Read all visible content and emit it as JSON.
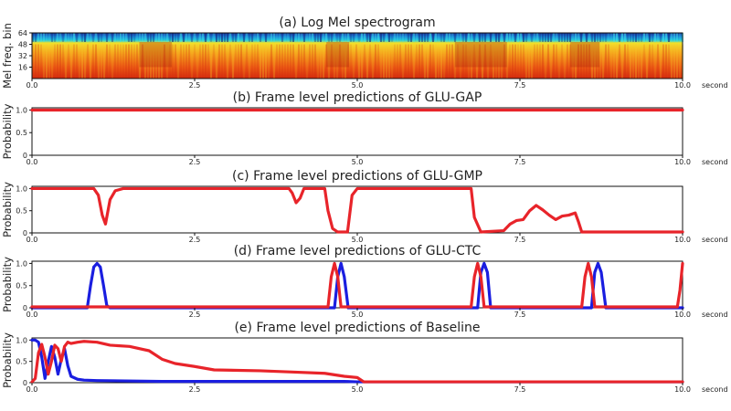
{
  "chart_data": [
    {
      "type": "heatmap",
      "title": "(a) Log Mel spectrogram",
      "xlabel": "second",
      "ylabel": "Mel freq. bin",
      "xlim": [
        0,
        10
      ],
      "ylim": [
        0,
        64
      ],
      "xticks": [
        "0.0",
        "2.5",
        "5.0",
        "7.5",
        "10.0"
      ],
      "yticks": [
        "64",
        "48",
        "32",
        "16"
      ],
      "colormap": [
        "#1d3a9c",
        "#1a85d8",
        "#23c8d8",
        "#f2e12b",
        "#f5a31c",
        "#ec5a14",
        "#d42a0e"
      ]
    },
    {
      "type": "line",
      "title": "(b) Frame level predictions of GLU-GAP",
      "xlabel": "second",
      "ylabel": "Probability",
      "xlim": [
        0,
        10
      ],
      "ylim": [
        0,
        1.05
      ],
      "xticks": [
        "0.0",
        "2.5",
        "5.0",
        "7.5",
        "10.0"
      ],
      "yticks": [
        "1.0",
        "0.5",
        "0"
      ],
      "series": [
        {
          "color": "#e8242a",
          "x": [
            0,
            10
          ],
          "y": [
            1.0,
            1.0
          ]
        }
      ]
    },
    {
      "type": "line",
      "title": "(c) Frame level predictions of GLU-GMP",
      "xlabel": "second",
      "ylabel": "Probability",
      "xlim": [
        0,
        10
      ],
      "ylim": [
        0,
        1.05
      ],
      "xticks": [
        "0.0",
        "2.5",
        "5.0",
        "7.5",
        "10.0"
      ],
      "yticks": [
        "1.0",
        "0.5",
        "0"
      ],
      "series": [
        {
          "color": "#e8242a",
          "x": [
            0,
            0.95,
            1.02,
            1.08,
            1.13,
            1.2,
            1.28,
            1.4,
            3.95,
            4.0,
            4.06,
            4.12,
            4.18,
            4.5,
            4.55,
            4.62,
            4.7,
            4.85,
            4.92,
            5.0,
            5.1,
            6.75,
            6.8,
            6.9,
            7.25,
            7.35,
            7.45,
            7.55,
            7.65,
            7.75,
            7.85,
            7.95,
            8.05,
            8.15,
            8.25,
            8.35,
            8.4,
            8.45,
            10.0
          ],
          "y": [
            1.0,
            1.0,
            0.85,
            0.4,
            0.2,
            0.75,
            0.95,
            1.0,
            1.0,
            0.9,
            0.68,
            0.78,
            1.0,
            1.0,
            0.5,
            0.1,
            0.02,
            0.02,
            0.85,
            1.0,
            1.0,
            1.0,
            0.35,
            0.02,
            0.05,
            0.2,
            0.28,
            0.3,
            0.5,
            0.62,
            0.52,
            0.4,
            0.3,
            0.38,
            0.4,
            0.45,
            0.25,
            0.02,
            0.02
          ]
        }
      ]
    },
    {
      "type": "line",
      "title": "(d) Frame level predictions of GLU-CTC",
      "xlabel": "second",
      "ylabel": "Probability",
      "xlim": [
        0,
        10
      ],
      "ylim": [
        0,
        1.05
      ],
      "xticks": [
        "0.0",
        "2.5",
        "5.0",
        "7.5",
        "10.0"
      ],
      "yticks": [
        "1.0",
        "0.5",
        "0"
      ],
      "series": [
        {
          "color": "#1a1ee0",
          "x": [
            0,
            0.85,
            0.9,
            0.95,
            1.0,
            1.05,
            1.1,
            1.15,
            1.2,
            4.65,
            4.7,
            4.75,
            4.8,
            4.86,
            6.85,
            6.9,
            6.95,
            7.0,
            7.05,
            8.6,
            8.65,
            8.7,
            8.75,
            8.82,
            10.0
          ],
          "y": [
            0.0,
            0.0,
            0.5,
            0.92,
            1.0,
            0.92,
            0.5,
            0.05,
            0.0,
            0.0,
            0.7,
            1.0,
            0.7,
            0.0,
            0.0,
            0.8,
            1.0,
            0.8,
            0.0,
            0.0,
            0.8,
            1.0,
            0.8,
            0.0,
            0.0
          ]
        },
        {
          "color": "#e8242a",
          "x": [
            0,
            4.55,
            4.6,
            4.65,
            4.7,
            4.75,
            6.75,
            6.8,
            6.85,
            6.9,
            6.95,
            8.45,
            8.5,
            8.55,
            8.6,
            8.65,
            9.92,
            9.96,
            10.0
          ],
          "y": [
            0.02,
            0.02,
            0.7,
            1.0,
            0.7,
            0.02,
            0.02,
            0.7,
            1.0,
            0.7,
            0.02,
            0.02,
            0.7,
            1.0,
            0.7,
            0.02,
            0.02,
            0.4,
            1.0
          ]
        }
      ]
    },
    {
      "type": "line",
      "title": "(e) Frame level predictions of Baseline",
      "xlabel": "second",
      "ylabel": "Probability",
      "xlim": [
        0,
        10
      ],
      "ylim": [
        0,
        1.05
      ],
      "xticks": [
        "0.0",
        "2.5",
        "5.0",
        "7.5",
        "10.0"
      ],
      "yticks": [
        "1.0",
        "0.5",
        "0"
      ],
      "series": [
        {
          "color": "#1a1ee0",
          "x": [
            0,
            0.05,
            0.1,
            0.15,
            0.2,
            0.25,
            0.3,
            0.35,
            0.4,
            0.45,
            0.5,
            0.55,
            0.6,
            0.7,
            0.8,
            1.0,
            2.0,
            3.0,
            4.0,
            4.8,
            5.0,
            10.0
          ],
          "y": [
            1.0,
            1.0,
            0.95,
            0.6,
            0.1,
            0.5,
            0.85,
            0.6,
            0.2,
            0.55,
            0.8,
            0.4,
            0.15,
            0.08,
            0.06,
            0.05,
            0.03,
            0.03,
            0.03,
            0.03,
            0.02,
            0.02
          ]
        },
        {
          "color": "#e8242a",
          "x": [
            0,
            0.05,
            0.1,
            0.15,
            0.2,
            0.25,
            0.3,
            0.35,
            0.4,
            0.45,
            0.5,
            0.55,
            0.6,
            0.7,
            0.8,
            1.0,
            1.2,
            1.5,
            1.8,
            2.0,
            2.2,
            2.5,
            2.8,
            3.5,
            4.0,
            4.5,
            4.8,
            5.0,
            5.1,
            10.0
          ],
          "y": [
            0.02,
            0.1,
            0.7,
            0.9,
            0.6,
            0.2,
            0.5,
            0.88,
            0.8,
            0.5,
            0.85,
            0.95,
            0.92,
            0.95,
            0.97,
            0.95,
            0.88,
            0.85,
            0.75,
            0.55,
            0.45,
            0.38,
            0.3,
            0.28,
            0.25,
            0.22,
            0.15,
            0.12,
            0.02,
            0.02
          ]
        }
      ]
    }
  ]
}
